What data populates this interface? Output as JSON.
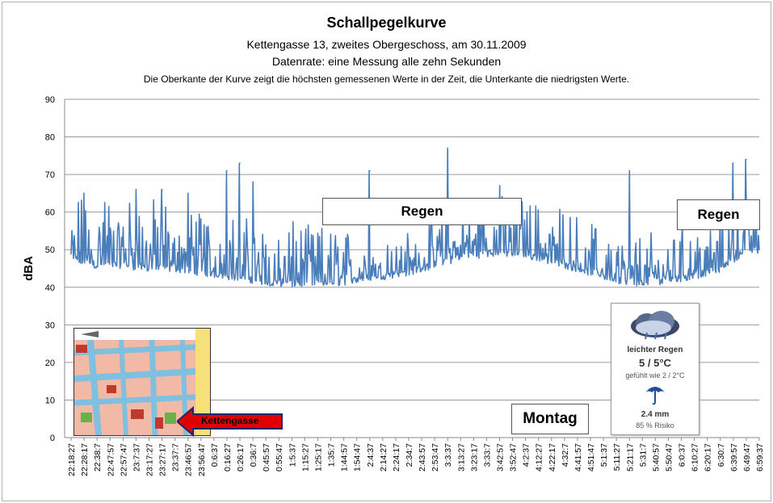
{
  "chart_data": {
    "type": "line",
    "title": "Schallpegelkurve",
    "subtitle_lines": [
      "Kettengasse 13, zweites Obergeschoss, am 30.11.2009",
      "Datenrate: eine Messung alle zehn Sekunden",
      "Die Oberkante der Kurve zeigt die höchsten gemessenen Werte  in der Zeit, die Unterkante  die niedrigsten Werte."
    ],
    "ylabel": "dBA",
    "xlabel": "",
    "ylim": [
      0,
      90
    ],
    "yticks": [
      0,
      10,
      20,
      30,
      40,
      50,
      60,
      70,
      80,
      90
    ],
    "grid": true,
    "legend": "none",
    "series_color": "#4a7ebb",
    "x_tick_labels": [
      "22:18:27",
      "22:28:17",
      "22:38:7",
      "22:47:57",
      "22:57:47",
      "23:7:37",
      "23:17:27",
      "23:27:17",
      "23:37:7",
      "23:46:57",
      "23:56:47",
      "0:6:37",
      "0:16:27",
      "0:26:17",
      "0:36:7",
      "0:45:57",
      "0:55:47",
      "1:5:37",
      "1:15:27",
      "1:25:17",
      "1:35:7",
      "1:44:57",
      "1:54:47",
      "2:4:37",
      "2:14:27",
      "2:24:17",
      "2:34:7",
      "2:43:57",
      "2:53:47",
      "3:3:37",
      "3:13:27",
      "3:23:17",
      "3:33:7",
      "3:42:57",
      "3:52:47",
      "4:2:37",
      "4:12:27",
      "4:22:17",
      "4:32:7",
      "4:41:57",
      "4:51:47",
      "5:1:37",
      "5:11:27",
      "5:21:17",
      "5:31:7",
      "5:40:57",
      "5:50:47",
      "6:0:37",
      "6:10:27",
      "6:20:17",
      "6:30:7",
      "6:39:57",
      "6:49:47",
      "6:59:37"
    ],
    "envelope": {
      "x_index": [
        0,
        2,
        4,
        6,
        8,
        10,
        12,
        14,
        16,
        18,
        20,
        22,
        24,
        26,
        28,
        30,
        32,
        34,
        36,
        38,
        40,
        42,
        44,
        46,
        48,
        50,
        52,
        53
      ],
      "baseline_low": [
        46,
        45,
        45,
        44,
        44,
        43,
        42,
        41,
        40,
        40,
        40,
        41,
        42,
        43,
        45,
        47,
        48,
        48,
        47,
        45,
        43,
        41,
        40,
        41,
        42,
        44,
        49,
        49
      ],
      "upper": [
        55,
        58,
        57,
        56,
        55,
        53,
        52,
        50,
        50,
        49,
        48,
        47,
        47,
        48,
        52,
        56,
        56,
        57,
        55,
        53,
        50,
        48,
        47,
        50,
        49,
        53,
        56,
        55
      ]
    },
    "peaks": [
      {
        "x": "22:28:17",
        "dBA": 65
      },
      {
        "x": "23:7:37",
        "dBA": 66
      },
      {
        "x": "23:27:17",
        "dBA": 66
      },
      {
        "x": "23:46:57",
        "dBA": 65
      },
      {
        "x": "0:16:27",
        "dBA": 71
      },
      {
        "x": "0:26:17",
        "dBA": 73
      },
      {
        "x": "0:36:7",
        "dBA": 68
      },
      {
        "x": "2:4:37",
        "dBA": 71
      },
      {
        "x": "3:3:37",
        "dBA": 77
      },
      {
        "x": "3:42:57",
        "dBA": 67
      },
      {
        "x": "5:21:17",
        "dBA": 71
      },
      {
        "x": "6:39:57",
        "dBA": 73
      },
      {
        "x": "6:49:47",
        "dBA": 74
      }
    ]
  },
  "annotations": {
    "regen_1": "Regen",
    "regen_2": "Regen",
    "montag": "Montag",
    "map_label": "Kettengasse"
  },
  "weather": {
    "condition": "leichter Regen",
    "temp": "5 / 5°C",
    "feels_like": "gefühlt wie 2 / 2°C",
    "precip": "2.4 mm",
    "risk": "85 % Risiko"
  }
}
